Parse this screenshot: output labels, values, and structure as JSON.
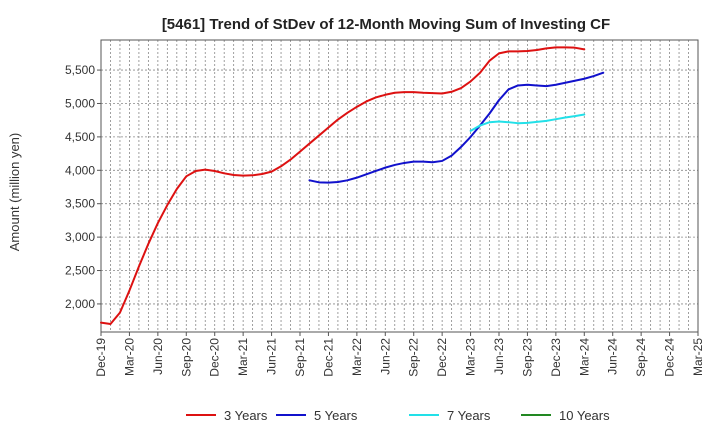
{
  "chart_data": {
    "type": "line",
    "title": "[5461]  Trend of StDev of 12-Month Moving Sum of Investing CF",
    "ylabel": "Amount (million yen)",
    "xlabel": "",
    "ylim": [
      1580,
      5950
    ],
    "y_ticks": [
      "2,000",
      "2,500",
      "3,000",
      "3,500",
      "4,000",
      "4,500",
      "5,000",
      "5,500"
    ],
    "y_tick_values": [
      2000,
      2500,
      3000,
      3500,
      4000,
      4500,
      5000,
      5500
    ],
    "x_ticks": [
      "Dec-19",
      "Mar-20",
      "Jun-20",
      "Sep-20",
      "Dec-20",
      "Mar-21",
      "Jun-21",
      "Sep-21",
      "Dec-21",
      "Mar-22",
      "Jun-22",
      "Sep-22",
      "Dec-22",
      "Mar-23",
      "Jun-23",
      "Sep-23",
      "Dec-23",
      "Mar-24",
      "Jun-24",
      "Sep-24",
      "Dec-24",
      "Mar-25"
    ],
    "grid": true,
    "legend_position": "bottom",
    "series": [
      {
        "name": "3 Years",
        "color": "#dd1111",
        "start_index": 0,
        "values": [
          1720,
          1700,
          1870,
          2200,
          2560,
          2900,
          3210,
          3480,
          3720,
          3910,
          3990,
          4010,
          3990,
          3955,
          3930,
          3920,
          3925,
          3945,
          3980,
          4060,
          4160,
          4280,
          4400,
          4520,
          4640,
          4760,
          4860,
          4950,
          5030,
          5090,
          5130,
          5160,
          5170,
          5170,
          5160,
          5155,
          5150,
          5175,
          5230,
          5330,
          5460,
          5640,
          5750,
          5780,
          5780,
          5785,
          5800,
          5825,
          5840,
          5840,
          5835,
          5810
        ]
      },
      {
        "name": "5 Years",
        "color": "#1111cc",
        "start_index": 22,
        "values": [
          3850,
          3820,
          3815,
          3825,
          3850,
          3890,
          3940,
          3990,
          4040,
          4080,
          4110,
          4130,
          4130,
          4120,
          4140,
          4220,
          4350,
          4500,
          4670,
          4850,
          5050,
          5210,
          5270,
          5280,
          5270,
          5260,
          5280,
          5310,
          5340,
          5370,
          5410,
          5460
        ]
      },
      {
        "name": "7 Years",
        "color": "#22e0e8",
        "start_index": 39,
        "values": [
          4590,
          4670,
          4720,
          4730,
          4720,
          4705,
          4710,
          4725,
          4740,
          4765,
          4790,
          4810,
          4835
        ]
      },
      {
        "name": "10 Years",
        "color": "#228822",
        "start_index": 0,
        "values": []
      }
    ]
  }
}
